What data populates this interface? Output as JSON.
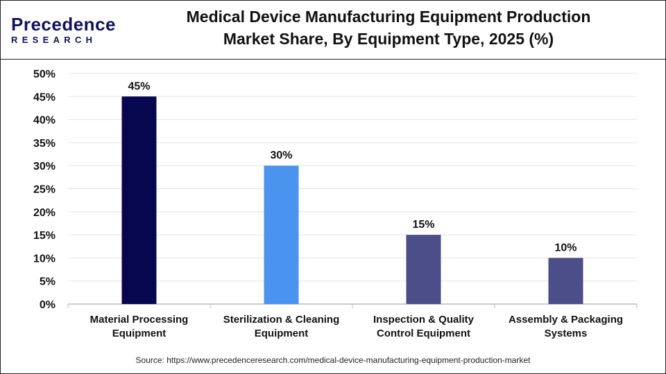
{
  "logo": {
    "top": "Precedence",
    "bottom": "RESEARCH"
  },
  "title_lines": [
    "Medical Device Manufacturing Equipment Production",
    "Market Share, By Equipment Type, 2025 (%)"
  ],
  "source": "Source: https://www.precedenceresearch.com/medical-device-manufacturing-equipment-production-market",
  "chart_data": {
    "type": "bar",
    "title": "Medical Device Manufacturing Equipment Production Market Share, By Equipment Type, 2025 (%)",
    "categories": [
      [
        "Material Processing",
        "Equipment"
      ],
      [
        "Sterilization & Cleaning",
        "Equipment"
      ],
      [
        "Inspection & Quality",
        "Control Equipment"
      ],
      [
        "Assembly & Packaging",
        "Systems"
      ]
    ],
    "values": [
      45,
      30,
      15,
      10
    ],
    "data_labels": [
      "45%",
      "30%",
      "15%",
      "10%"
    ],
    "colors": [
      "#07074f",
      "#4a94ef",
      "#4b4e88",
      "#4b4e88"
    ],
    "ylim": [
      0,
      50
    ],
    "yticks": [
      "0%",
      "5%",
      "10%",
      "15%",
      "20%",
      "25%",
      "30%",
      "35%",
      "40%",
      "45%",
      "50%"
    ],
    "grid": true,
    "legend": "none"
  }
}
